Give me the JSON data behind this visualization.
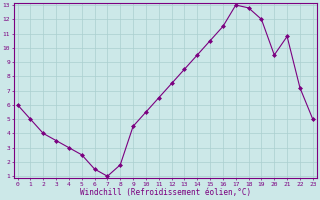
{
  "x": [
    0,
    1,
    2,
    3,
    4,
    5,
    6,
    7,
    8,
    9,
    10,
    11,
    12,
    13,
    14,
    15,
    16,
    17,
    18,
    19,
    20,
    21,
    22,
    23
  ],
  "y": [
    6.0,
    5.0,
    4.0,
    3.5,
    3.0,
    2.5,
    1.5,
    1.0,
    1.8,
    4.5,
    5.5,
    6.5,
    7.5,
    8.5,
    9.5,
    10.5,
    11.5,
    13.0,
    12.8,
    12.0,
    9.5,
    10.8,
    7.2,
    5.0
  ],
  "ylim_min": 1,
  "ylim_max": 13,
  "xlim_min": 0,
  "xlim_max": 23,
  "yticks": [
    1,
    2,
    3,
    4,
    5,
    6,
    7,
    8,
    9,
    10,
    11,
    12,
    13
  ],
  "xticks": [
    0,
    1,
    2,
    3,
    4,
    5,
    6,
    7,
    8,
    9,
    10,
    11,
    12,
    13,
    14,
    15,
    16,
    17,
    18,
    19,
    20,
    21,
    22,
    23
  ],
  "line_color": "#7b0080",
  "marker": "D",
  "marker_size": 2.0,
  "bg_color": "#cce8e8",
  "grid_color": "#aacfcf",
  "xlabel": "Windchill (Refroidissement éolien,°C)",
  "xlabel_color": "#7b0080",
  "tick_color": "#7b0080",
  "axis_color": "#7b0080",
  "tick_fontsize": 4.5,
  "xlabel_fontsize": 5.5,
  "font_family": "monospace",
  "linewidth": 0.8
}
